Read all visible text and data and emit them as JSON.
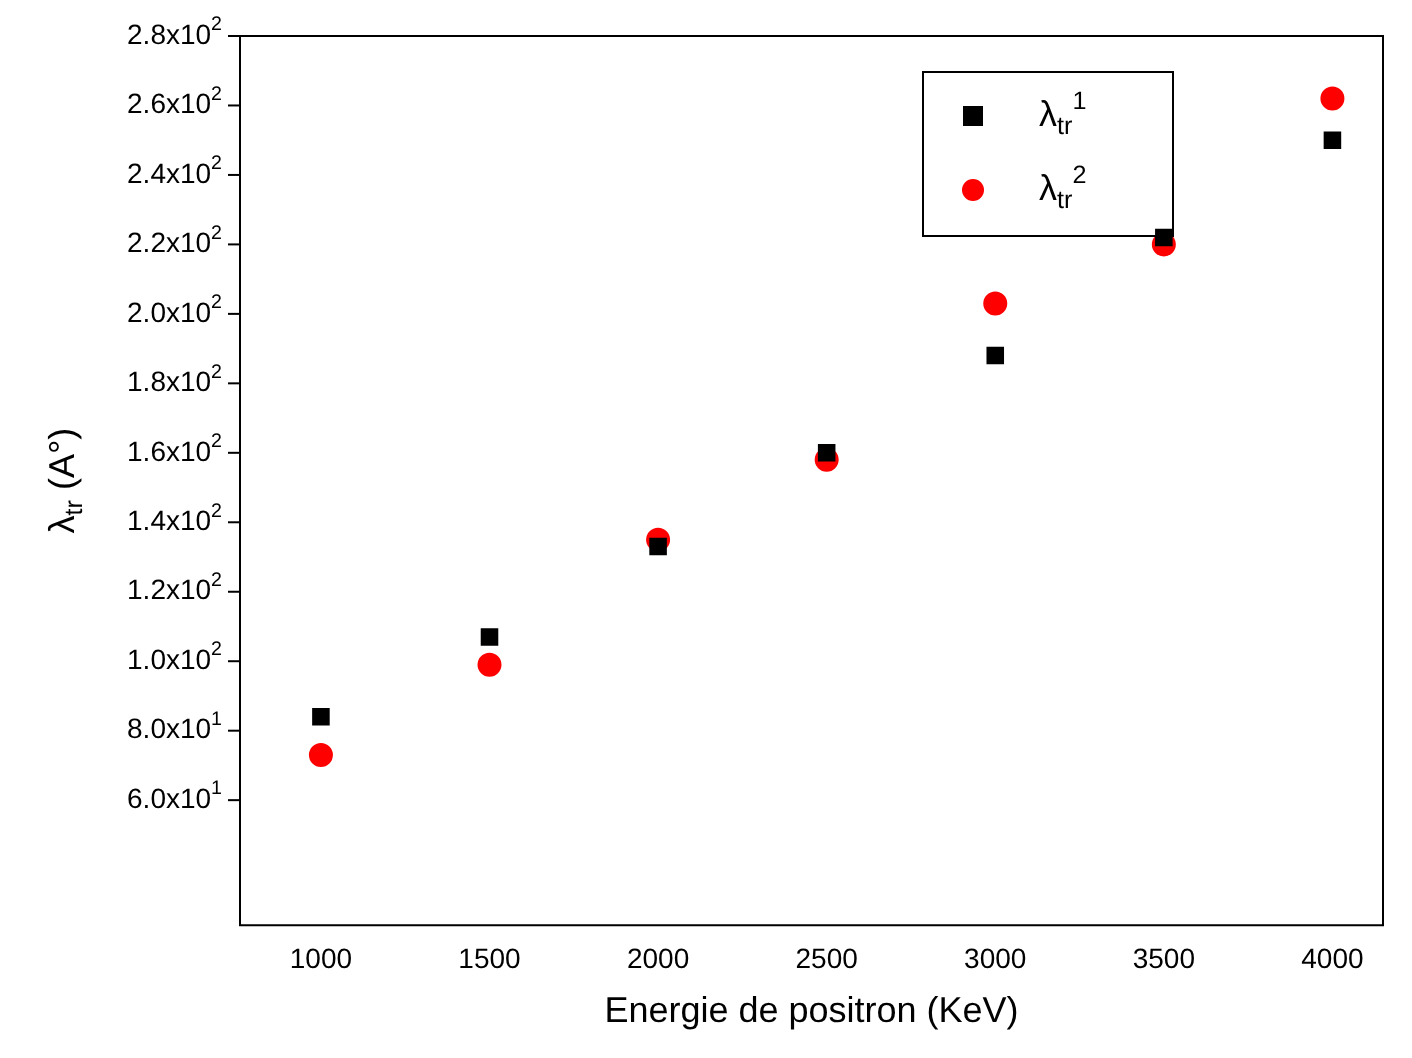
{
  "chart_data": {
    "type": "scatter",
    "xlabel": "Energie de positron (KeV)",
    "ylabel": "λ$_{tr}$ (A°)",
    "x": [
      1000,
      1500,
      2000,
      2500,
      3000,
      3500,
      4000
    ],
    "series": [
      {
        "name": "λ$_{tr}$$^{1}$",
        "color": "#000000",
        "marker": "square",
        "values": [
          84,
          107,
          133,
          160,
          188,
          222,
          250
        ]
      },
      {
        "name": "λ$_{tr}$$^{2}$",
        "color": "#ff0000",
        "marker": "circle",
        "values": [
          73,
          99,
          135,
          158,
          203,
          220,
          262
        ]
      }
    ],
    "xlim": [
      760,
      4150
    ],
    "xticks": [
      1000,
      1500,
      2000,
      2500,
      3000,
      3500,
      4000
    ],
    "ylim": [
      24,
      280
    ],
    "yticks": [
      {
        "value": 60,
        "label": "6.0x10$^{1}$"
      },
      {
        "value": 80,
        "label": "8.0x10$^{1}$"
      },
      {
        "value": 100,
        "label": "1.0x10$^{2}$"
      },
      {
        "value": 120,
        "label": "1.2x10$^{2}$"
      },
      {
        "value": 140,
        "label": "1.4x10$^{2}$"
      },
      {
        "value": 160,
        "label": "1.6x10$^{2}$"
      },
      {
        "value": 180,
        "label": "1.8x10$^{2}$"
      },
      {
        "value": 200,
        "label": "2.0x10$^{2}$"
      },
      {
        "value": 220,
        "label": "2.2x10$^{2}$"
      },
      {
        "value": 240,
        "label": "2.4x10$^{2}$"
      },
      {
        "value": 260,
        "label": "2.6x10$^{2}$"
      },
      {
        "value": 280,
        "label": "2.8x10$^{2}$"
      }
    ],
    "grid": false,
    "legend": "top right"
  }
}
